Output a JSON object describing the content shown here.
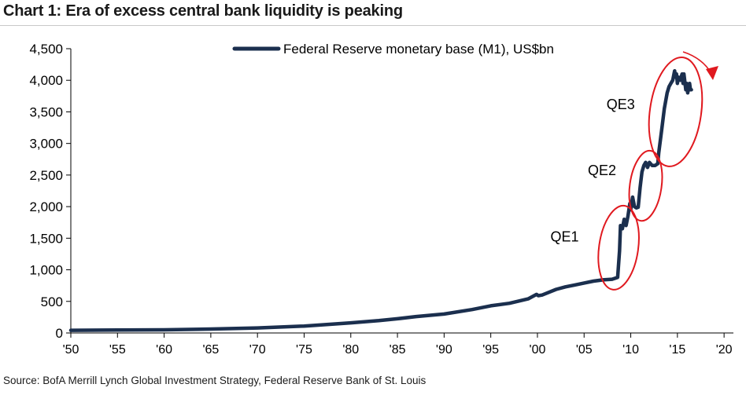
{
  "chart_data": {
    "type": "line",
    "title": "Chart 1: Era of excess central bank liquidity is peaking",
    "source": "Source: BofA Merrill Lynch Global Investment Strategy, Federal Reserve Bank of St. Louis",
    "series": [
      {
        "name": "Federal Reserve monetary base (M1), US$bn",
        "color": "#1b2f4e",
        "x": [
          1950,
          1955,
          1960,
          1965,
          1970,
          1975,
          1980,
          1983,
          1985,
          1987,
          1990,
          1993,
          1995,
          1997,
          1999,
          1999.9,
          2000.1,
          2000.5,
          2001,
          2002,
          2003,
          2004,
          2005,
          2006,
          2007,
          2008,
          2008.6,
          2008.8,
          2008.9,
          2009.1,
          2009.3,
          2009.5,
          2009.7,
          2009.9,
          2010.0,
          2010.2,
          2010.4,
          2010.6,
          2010.8,
          2011.0,
          2011.2,
          2011.4,
          2011.6,
          2011.8,
          2012.0,
          2012.3,
          2012.6,
          2012.9,
          2013.0,
          2013.3,
          2013.6,
          2013.9,
          2014.1,
          2014.3,
          2014.5,
          2014.7,
          2014.8,
          2014.9,
          2015.0,
          2015.1,
          2015.3,
          2015.5,
          2015.6,
          2015.7,
          2015.9,
          2016.0,
          2016.1,
          2016.3,
          2016.4,
          2016.5
        ],
        "values": [
          42,
          46,
          50,
          62,
          80,
          110,
          160,
          195,
          225,
          260,
          300,
          370,
          430,
          470,
          540,
          610,
          590,
          600,
          630,
          690,
          730,
          760,
          790,
          820,
          840,
          850,
          880,
          1300,
          1700,
          1650,
          1800,
          1700,
          1850,
          2050,
          1950,
          2150,
          2000,
          1980,
          1990,
          2300,
          2550,
          2650,
          2700,
          2620,
          2700,
          2650,
          2650,
          2680,
          2850,
          3200,
          3550,
          3800,
          3900,
          3950,
          4000,
          4150,
          4050,
          4100,
          3950,
          4050,
          4000,
          4100,
          3950,
          4100,
          3850,
          3950,
          3800,
          3950,
          3850,
          3850
        ]
      }
    ],
    "x_ticks": [
      "'50",
      "'55",
      "'60",
      "'65",
      "'70",
      "'75",
      "'80",
      "'85",
      "'90",
      "'95",
      "'00",
      "'05",
      "'10",
      "'15",
      "'20"
    ],
    "x_tick_values": [
      1950,
      1955,
      1960,
      1965,
      1970,
      1975,
      1980,
      1985,
      1990,
      1995,
      2000,
      2005,
      2010,
      2015,
      2020
    ],
    "y_ticks": [
      "0",
      "500",
      "1,000",
      "1,500",
      "2,000",
      "2,500",
      "3,000",
      "3,500",
      "4,000",
      "4,500"
    ],
    "y_tick_values": [
      0,
      500,
      1000,
      1500,
      2000,
      2500,
      3000,
      3500,
      4000,
      4500
    ],
    "xlim": [
      1950,
      2021
    ],
    "ylim": [
      0,
      4500
    ],
    "grid": false,
    "legend_position": "top-center",
    "annotations": [
      {
        "text": "QE1",
        "x": 2001.4,
        "y": 1450
      },
      {
        "text": "QE2",
        "x": 2005.4,
        "y": 2500
      },
      {
        "text": "QE3",
        "x": 2007.4,
        "y": 3540
      }
    ],
    "highlight_ellipses": [
      {
        "label": "QE1",
        "cx": 2008.7,
        "cy": 1350,
        "rx": 2.1,
        "ry": 670
      },
      {
        "label": "QE2",
        "cx": 2011.6,
        "cy": 2330,
        "rx": 1.7,
        "ry": 560
      },
      {
        "label": "QE3",
        "cx": 2014.8,
        "cy": 3500,
        "rx": 2.75,
        "ry": 870
      }
    ],
    "arrow": {
      "direction": "down-right",
      "color": "#e0191f"
    },
    "highlight_color": "#e0191f"
  }
}
